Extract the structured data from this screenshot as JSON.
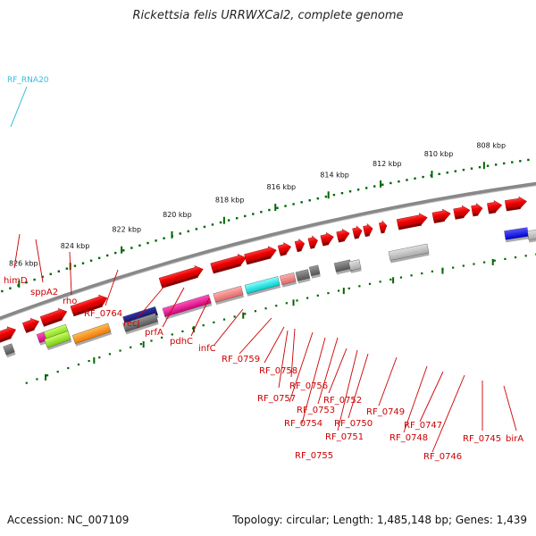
{
  "title": "Rickettsia felis URRWXCal2, complete genome",
  "footer": {
    "accession": "Accession: NC_007109",
    "summary": "Topology: circular; Length: 1,485,148 bp; Genes: 1,439"
  },
  "rna_label": "RF_RNA20",
  "scale_ticks": [
    "826 kbp",
    "824 kbp",
    "822 kbp",
    "820 kbp",
    "818 kbp",
    "816 kbp",
    "814 kbp",
    "812 kbp",
    "810 kbp",
    "808 kbp"
  ],
  "gene_labels": [
    "himD",
    "sppA2",
    "rho",
    "RF_0764",
    "recJ",
    "prfA",
    "pdhC",
    "infC",
    "RF_0759",
    "RF_0758",
    "RF_0757",
    "RF_0756",
    "RF_0754",
    "RF_0755",
    "RF_0753",
    "RF_0752",
    "RF_0751",
    "RF_0750",
    "RF_0749",
    "RF_0748",
    "RF_0747",
    "RF_0746",
    "RF_0745",
    "birA"
  ],
  "colors": {
    "gene_red": "#e8000b",
    "label_red": "#cc0000",
    "rna_cyan": "#33bbdd",
    "tick_green": "#006600",
    "backbone": "#888888",
    "orange": "#ff8800",
    "navy": "#1a1a7a",
    "magenta": "#ee1188",
    "pink": "#f08080",
    "cyan": "#00e5ee",
    "gray": "#777777",
    "lightgray": "#bbbbbb",
    "lime": "#88dd22",
    "blue": "#0000ee"
  }
}
